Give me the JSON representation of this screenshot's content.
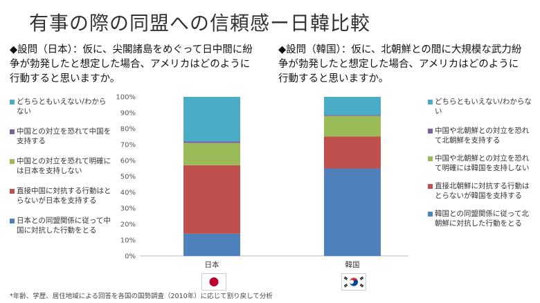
{
  "title": "有事の際の同盟への信頼感ー日韓比較",
  "question_japan": "◆設問（日本）：仮に、尖閣諸島をめぐって日中間に紛争が勃発したと想定した場合、アメリカはどのように行動すると思いますか。",
  "question_korea": "◆設問（韓国）：仮に、北朝鮮との間に大規模な武力紛争が勃発したと想定した場合、アメリカはどのように行動すると思いますか。",
  "footnote": "*年齢、学歴、居住地域による回答を各国の国勢調査（2010年）に応じて割り戻して分析",
  "legend_japan": [
    {
      "label": "どちらともいえない/わからない",
      "color": "#4bacc6"
    },
    {
      "label": "中国との対立を恐れて中国を支持する",
      "color": "#7f5fa3"
    },
    {
      "label": "中国との対立を恐れて明確には日本を支持しない",
      "color": "#9bbb59"
    },
    {
      "label": "直接中国に対抗する行動はとらないが日本を支持する",
      "color": "#c0504d"
    },
    {
      "label": "日本との同盟関係に従って中国に対抗した行動をとる",
      "color": "#4f81bd"
    }
  ],
  "legend_korea": [
    {
      "label": "どちらともいえない/わからない",
      "color": "#4bacc6"
    },
    {
      "label": "中国や北朝鮮との対立を恐れて北朝鮮を支持する",
      "color": "#7f5fa3"
    },
    {
      "label": "中国や北朝鮮との対立を恐れて明確には韓国を支持しない",
      "color": "#9bbb59"
    },
    {
      "label": "直接北朝鮮に対抗する行動はとらないが韓国を支持する",
      "color": "#c0504d"
    },
    {
      "label": "韓国との同盟関係に従って北朝鮮に対抗した行動をとる",
      "color": "#4f81bd"
    }
  ],
  "chart_data": {
    "type": "bar",
    "stacked": true,
    "categories": [
      "日本",
      "韓国"
    ],
    "ylim": [
      0,
      100
    ],
    "yticks": [
      "0%",
      "10%",
      "20%",
      "30%",
      "40%",
      "50%",
      "60%",
      "70%",
      "80%",
      "90%",
      "100%"
    ],
    "grid": false,
    "series": [
      {
        "values": [
          14,
          55
        ],
        "color": "#4f81bd"
      },
      {
        "values": [
          43,
          20
        ],
        "color": "#c0504d"
      },
      {
        "values": [
          14,
          13
        ],
        "color": "#9bbb59"
      },
      {
        "values": [
          1,
          0.5
        ],
        "color": "#7f5fa3"
      },
      {
        "values": [
          28,
          11.5
        ],
        "color": "#4bacc6"
      }
    ]
  }
}
